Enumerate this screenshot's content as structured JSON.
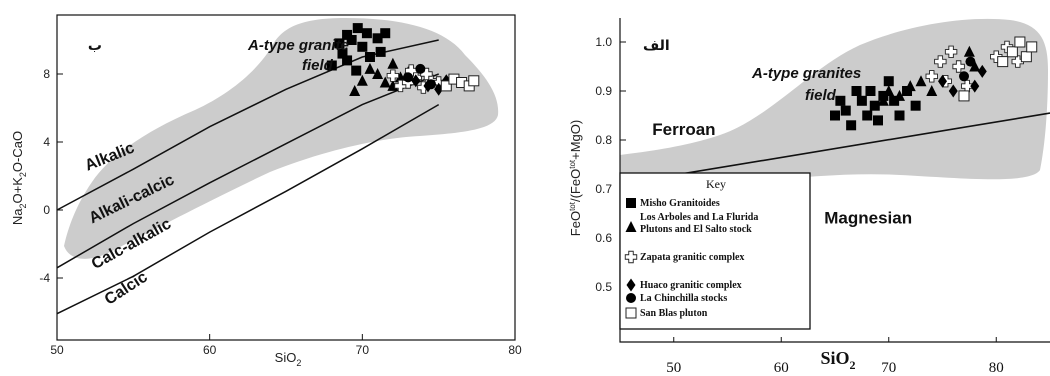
{
  "chart_data": [
    {
      "type": "scatter",
      "panel_tag": "ب",
      "xlabel": "SiO",
      "xlabel_sub": "2",
      "ylabel_parts": [
        "Na",
        "2",
        "O+K",
        "2",
        "O-CaO"
      ],
      "xlim": [
        50,
        80
      ],
      "ylim": [
        -8,
        12
      ],
      "xticks": [
        "50",
        "60",
        "70",
        "80"
      ],
      "yticks": [
        "-4",
        "0",
        "4",
        "8"
      ],
      "field_label": [
        "A-type granite",
        "field"
      ],
      "boundaries": [
        {
          "name": "Alkalic",
          "points": [
            [
              50,
              0
            ],
            [
              55,
              2.4
            ],
            [
              60,
              4.9
            ],
            [
              65,
              7.1
            ],
            [
              70,
              9
            ],
            [
              75,
              10
            ]
          ]
        },
        {
          "name": "Alkali-calcic",
          "points": [
            [
              50,
              -3.4
            ],
            [
              55,
              -0.8
            ],
            [
              60,
              1.6
            ],
            [
              65,
              3.9
            ],
            [
              70,
              6.2
            ],
            [
              75,
              8
            ]
          ]
        },
        {
          "name": "Calc-alkalic",
          "points": [
            [
              50,
              -6.1
            ],
            [
              55,
              -3.9
            ],
            [
              60,
              -1.3
            ],
            [
              65,
              1.1
            ],
            [
              70,
              3.6
            ],
            [
              75,
              6.2
            ]
          ]
        },
        {
          "name": "Calcic",
          "points": []
        }
      ],
      "region_labels": [
        {
          "text": "Alkalic",
          "x": 52,
          "y": 2.3
        },
        {
          "text": "Alkali-calcic",
          "x": 52.3,
          "y": -0.8
        },
        {
          "text": "Calc-alkalic",
          "x": 52.5,
          "y": -3.5
        },
        {
          "text": "Calcic",
          "x": 53.4,
          "y": -5.6
        }
      ],
      "series": [
        {
          "marker": "square",
          "points": [
            [
              68,
              8.5
            ],
            [
              68.5,
              9.8
            ],
            [
              68.7,
              9.2
            ],
            [
              69,
              8.8
            ],
            [
              69,
              10.3
            ],
            [
              69.3,
              10
            ],
            [
              69.6,
              8.2
            ],
            [
              70,
              9.6
            ],
            [
              70.3,
              10.4
            ],
            [
              70.5,
              9
            ],
            [
              71,
              10.1
            ],
            [
              71.2,
              9.3
            ],
            [
              71.5,
              10.4
            ],
            [
              69.7,
              10.7
            ]
          ]
        },
        {
          "marker": "triangle",
          "points": [
            [
              69.5,
              7.0
            ],
            [
              70,
              7.6
            ],
            [
              70.5,
              8.3
            ],
            [
              71,
              8.0
            ],
            [
              71.5,
              7.5
            ],
            [
              72,
              7.3
            ],
            [
              72.5,
              7.8
            ],
            [
              73,
              8.1
            ],
            [
              72,
              8.6
            ]
          ]
        },
        {
          "marker": "cross",
          "points": [
            [
              72,
              7.9
            ],
            [
              72.5,
              7.3
            ],
            [
              73,
              7.5
            ],
            [
              73.5,
              7.8
            ],
            [
              74,
              7.2
            ],
            [
              74.5,
              7.6
            ],
            [
              75,
              7.5
            ],
            [
              73.2,
              8.2
            ],
            [
              74.2,
              8.0
            ]
          ]
        },
        {
          "marker": "diamond",
          "points": [
            [
              73.5,
              7.6
            ],
            [
              74.3,
              7.3
            ],
            [
              75,
              7.1
            ],
            [
              75.5,
              7.6
            ]
          ]
        },
        {
          "marker": "circle",
          "points": [
            [
              73,
              7.8
            ],
            [
              73.8,
              8.3
            ],
            [
              74.5,
              7.4
            ]
          ]
        },
        {
          "marker": "open-square",
          "points": [
            [
              75.5,
              7.3
            ],
            [
              76,
              7.7
            ],
            [
              76.5,
              7.5
            ],
            [
              77,
              7.3
            ],
            [
              77.3,
              7.6
            ]
          ]
        }
      ]
    },
    {
      "type": "scatter",
      "panel_tag": "الف",
      "xlabel": "SiO",
      "xlabel_sub": "2",
      "ylabel_parts": [
        "FeO",
        "tot",
        "/(FeO",
        "tot",
        "+MgO)"
      ],
      "xlim": [
        45,
        85
      ],
      "ylim": [
        0.35,
        1.05
      ],
      "xticks": [
        "50",
        "60",
        "70",
        "80"
      ],
      "yticks": [
        "0.5",
        "0.6",
        "0.7",
        "0.8",
        "0.9",
        "1.0"
      ],
      "field_label": [
        "A-type granites",
        "field"
      ],
      "region_labels": [
        {
          "text": "Ferroan",
          "x": 48,
          "y": 0.81
        },
        {
          "text": "Magnesian",
          "x": 64,
          "y": 0.63
        }
      ],
      "boundary": [
        [
          45,
          0.71
        ],
        [
          85,
          0.855
        ]
      ],
      "legend": {
        "title": "Key",
        "items": [
          {
            "marker": "square",
            "label": "Misho Granitoides"
          },
          {
            "marker": "triangle",
            "label": "Los Arboles and La Flurida"
          },
          {
            "marker": "none",
            "label": "Plutons and El Salto stock"
          },
          {
            "marker": "cross",
            "label": "Zapata granitic complex"
          },
          {
            "marker": "diamond",
            "label": "Huaco granitic complex"
          },
          {
            "marker": "circle",
            "label": "La Chinchilla stocks"
          },
          {
            "marker": "open-square",
            "label": "San Blas pluton"
          }
        ]
      },
      "series": [
        {
          "marker": "square",
          "points": [
            [
              65,
              0.85
            ],
            [
              65.5,
              0.88
            ],
            [
              66,
              0.86
            ],
            [
              66.5,
              0.83
            ],
            [
              67,
              0.9
            ],
            [
              67.5,
              0.88
            ],
            [
              68,
              0.85
            ],
            [
              68.3,
              0.9
            ],
            [
              68.7,
              0.87
            ],
            [
              69,
              0.84
            ],
            [
              69.5,
              0.89
            ],
            [
              70,
              0.92
            ],
            [
              70.5,
              0.88
            ],
            [
              71,
              0.85
            ],
            [
              71.7,
              0.9
            ],
            [
              72.5,
              0.87
            ]
          ]
        },
        {
          "marker": "triangle",
          "points": [
            [
              69.5,
              0.88
            ],
            [
              70,
              0.9
            ],
            [
              71,
              0.89
            ],
            [
              72,
              0.91
            ],
            [
              73,
              0.92
            ],
            [
              74,
              0.9
            ],
            [
              77.5,
              0.98
            ],
            [
              78,
              0.95
            ]
          ]
        },
        {
          "marker": "cross",
          "points": [
            [
              74,
              0.93
            ],
            [
              74.8,
              0.96
            ],
            [
              75.3,
              0.92
            ],
            [
              75.8,
              0.98
            ],
            [
              76.5,
              0.95
            ],
            [
              77.3,
              0.91
            ],
            [
              80,
              0.97
            ],
            [
              81,
              0.99
            ],
            [
              82,
              0.96
            ]
          ]
        },
        {
          "marker": "diamond",
          "points": [
            [
              75,
              0.92
            ],
            [
              76,
              0.9
            ],
            [
              78,
              0.91
            ],
            [
              78.7,
              0.94
            ]
          ]
        },
        {
          "marker": "circle",
          "points": [
            [
              77,
              0.93
            ],
            [
              77.6,
              0.96
            ]
          ]
        },
        {
          "marker": "open-square",
          "points": [
            [
              81.5,
              0.98
            ],
            [
              82.2,
              1.0
            ],
            [
              82.8,
              0.97
            ],
            [
              83.3,
              0.99
            ],
            [
              77,
              0.89
            ],
            [
              80.6,
              0.96
            ]
          ]
        }
      ]
    }
  ]
}
